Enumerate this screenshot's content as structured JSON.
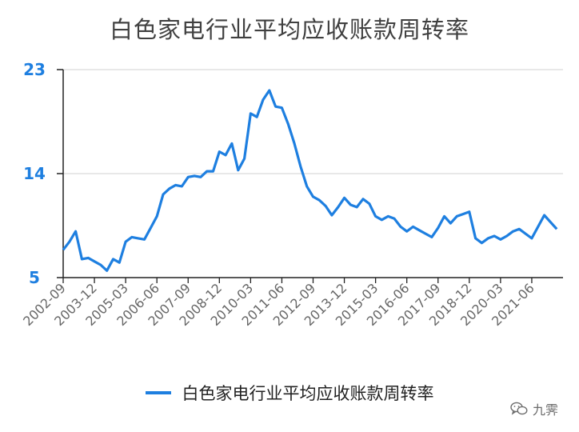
{
  "colors": {
    "line": "#1e7fe0",
    "ytick": "#1e7fe0",
    "xtick": "#666666",
    "grid": "#d9d9d9",
    "axis": "#222222"
  },
  "watermark": {
    "icon": "wechat-icon",
    "text": "九霁"
  },
  "chart_data": {
    "type": "line",
    "title": "白色家电行业平均应收账款周转率",
    "xlabel": "",
    "ylabel": "",
    "ylim": [
      5,
      23
    ],
    "yticks": [
      5,
      14,
      23
    ],
    "legend": "bottom",
    "grid": "horizontal",
    "x_tick_labels": [
      "2002-09",
      "2003-12",
      "2005-03",
      "2006-06",
      "2007-09",
      "2008-12",
      "2010-03",
      "2011-06",
      "2012-09",
      "2013-12",
      "2015-03",
      "2016-06",
      "2017-09",
      "2018-12",
      "2020-03",
      "2021-06"
    ],
    "series": [
      {
        "name": "白色家电行业平均应收账款周转率",
        "values": [
          7.4,
          8.1,
          9.0,
          6.6,
          6.7,
          6.4,
          6.1,
          5.6,
          6.6,
          6.3,
          8.1,
          8.5,
          8.4,
          8.3,
          9.3,
          10.3,
          12.2,
          12.7,
          13.0,
          12.9,
          13.7,
          13.8,
          13.7,
          14.2,
          14.2,
          15.9,
          15.6,
          16.6,
          14.3,
          15.3,
          19.2,
          18.9,
          20.4,
          21.2,
          19.8,
          19.7,
          18.3,
          16.6,
          14.6,
          12.9,
          12.0,
          11.7,
          11.2,
          10.4,
          11.1,
          11.9,
          11.3,
          11.1,
          11.8,
          11.4,
          10.3,
          10.0,
          10.3,
          10.1,
          9.4,
          9.0,
          9.4,
          9.1,
          8.8,
          8.5,
          9.3,
          10.3,
          9.7,
          10.3,
          10.5,
          10.7,
          8.4,
          8.0,
          8.4,
          8.6,
          8.3,
          8.6,
          9.0,
          9.2,
          8.8,
          8.4,
          9.4,
          10.4,
          9.8,
          9.2
        ]
      }
    ]
  }
}
